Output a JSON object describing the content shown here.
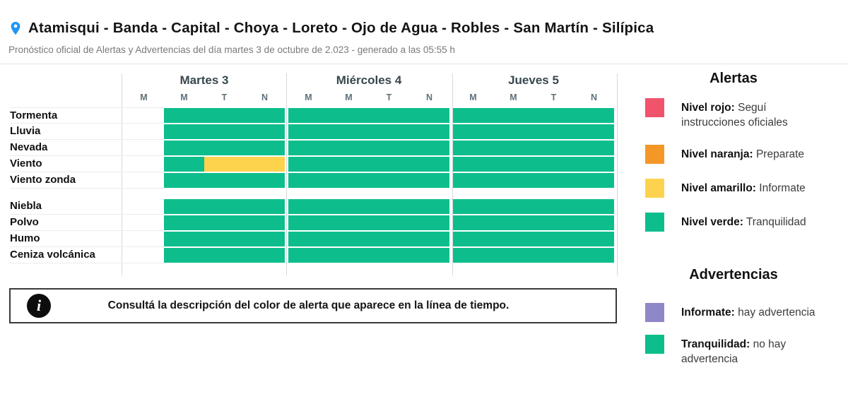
{
  "colors": {
    "green": "#0dbe8c",
    "yellow": "#fdd34e",
    "orange": "#f59727",
    "red": "#f0536b",
    "purple": "#8e87c8",
    "pin_blue": "#2196f3"
  },
  "header": {
    "title": "Atamisqui - Banda - Capital - Choya - Loreto - Ojo de Agua - Robles - San Martín - Silípica",
    "subtitle": "Pronóstico oficial de Alertas y Advertencias del día martes 3 de octubre de 2.023 - generado a las 05:55 h"
  },
  "timeline": {
    "days": [
      {
        "label": "Martes 3",
        "columns": [
          "M",
          "M",
          "T",
          "N"
        ]
      },
      {
        "label": "Miércoles 4",
        "columns": [
          "M",
          "M",
          "T",
          "N"
        ]
      },
      {
        "label": "Jueves 5",
        "columns": [
          "M",
          "M",
          "T",
          "N"
        ]
      }
    ],
    "row_groups": [
      {
        "name": "alertas",
        "rows": [
          {
            "label": "Tormenta",
            "cells": [
              "none",
              "green",
              "green",
              "green",
              "green",
              "green",
              "green",
              "green",
              "green",
              "green",
              "green",
              "green"
            ]
          },
          {
            "label": "Lluvia",
            "cells": [
              "none",
              "green",
              "green",
              "green",
              "green",
              "green",
              "green",
              "green",
              "green",
              "green",
              "green",
              "green"
            ]
          },
          {
            "label": "Nevada",
            "cells": [
              "none",
              "green",
              "green",
              "green",
              "green",
              "green",
              "green",
              "green",
              "green",
              "green",
              "green",
              "green"
            ]
          },
          {
            "label": "Viento",
            "cells": [
              "none",
              "green",
              "yellow",
              "yellow",
              "green",
              "green",
              "green",
              "green",
              "green",
              "green",
              "green",
              "green"
            ]
          },
          {
            "label": "Viento zonda",
            "cells": [
              "none",
              "green",
              "green",
              "green",
              "green",
              "green",
              "green",
              "green",
              "green",
              "green",
              "green",
              "green"
            ]
          }
        ]
      },
      {
        "name": "advertencias",
        "rows": [
          {
            "label": "Niebla",
            "cells": [
              "none",
              "green",
              "green",
              "green",
              "green",
              "green",
              "green",
              "green",
              "green",
              "green",
              "green",
              "green"
            ]
          },
          {
            "label": "Polvo",
            "cells": [
              "none",
              "green",
              "green",
              "green",
              "green",
              "green",
              "green",
              "green",
              "green",
              "green",
              "green",
              "green"
            ]
          },
          {
            "label": "Humo",
            "cells": [
              "none",
              "green",
              "green",
              "green",
              "green",
              "green",
              "green",
              "green",
              "green",
              "green",
              "green",
              "green"
            ]
          },
          {
            "label": "Ceniza volcánica",
            "cells": [
              "none",
              "green",
              "green",
              "green",
              "green",
              "green",
              "green",
              "green",
              "green",
              "green",
              "green",
              "green"
            ]
          }
        ]
      }
    ]
  },
  "legend": {
    "alertas": {
      "title": "Alertas",
      "items": [
        {
          "color_key": "red",
          "term": "Nivel rojo:",
          "description": "Seguí instrucciones oficiales"
        },
        {
          "color_key": "orange",
          "term": "Nivel naranja:",
          "description": "Preparate"
        },
        {
          "color_key": "yellow",
          "term": "Nivel amarillo:",
          "description": "Informate"
        },
        {
          "color_key": "green",
          "term": "Nivel verde:",
          "description": "Tranquilidad"
        }
      ]
    },
    "advertencias": {
      "title": "Advertencias",
      "items": [
        {
          "color_key": "purple",
          "term": "Informate:",
          "description": "hay advertencia"
        },
        {
          "color_key": "green",
          "term": "Tranquilidad:",
          "description": "no hay advertencia"
        }
      ]
    }
  },
  "info_box": {
    "icon_glyph": "i",
    "text": "Consultá la descripción del color de alerta que aparece en la línea de tiempo."
  }
}
